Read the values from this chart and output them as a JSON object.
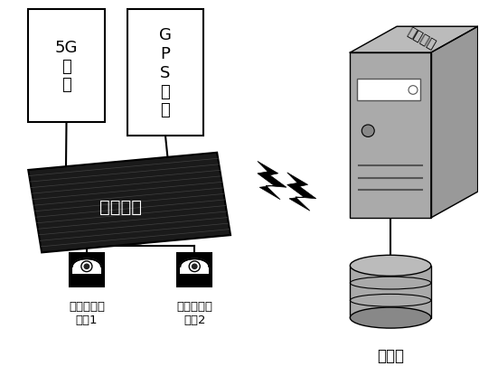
{
  "bg_color": "#ffffff",
  "antenna_5g_label": "5G\n天\n线",
  "antenna_gps_label": "G\nP\nS\n天\n线",
  "terminal_label": "终端设备",
  "server_label": "云服务器",
  "db_label": "数据库",
  "cam1_label": "红外补光摄\n像头1",
  "cam2_label": "红外补光摄\n像头2",
  "line_color": "#000000",
  "font_size_label": 11,
  "font_size_small": 9
}
